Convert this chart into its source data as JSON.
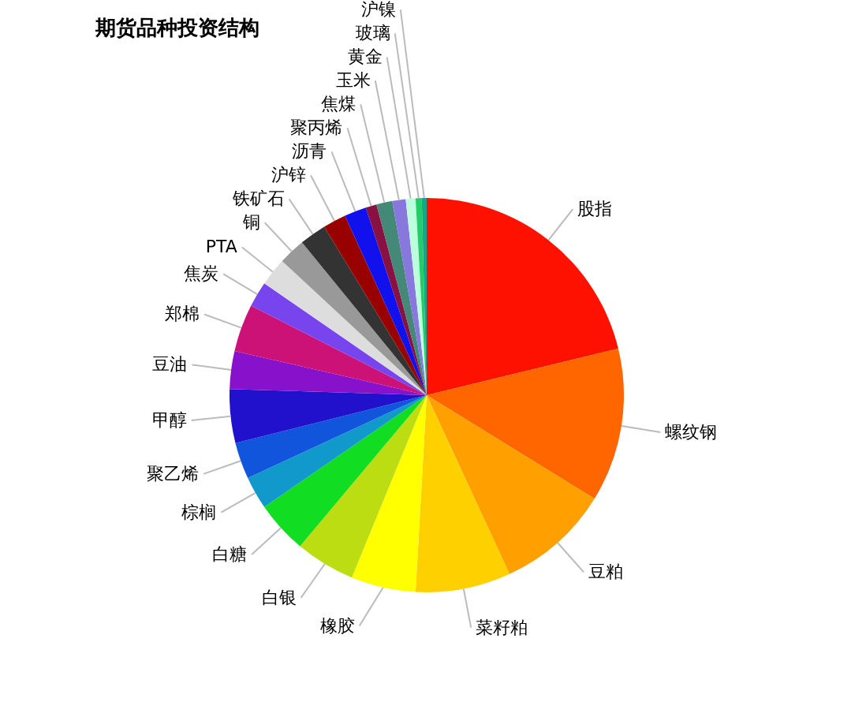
{
  "chart_data": {
    "type": "pie",
    "title": "期货品种投资结构",
    "categories": [
      "股指",
      "螺纹钢",
      "豆粕",
      "菜籽粕",
      "橡胶",
      "白银",
      "白糖",
      "棕榈",
      "聚乙烯",
      "甲醇",
      "豆油",
      "郑棉",
      "焦炭",
      "PTA",
      "铜",
      "铁矿石",
      "沪锌",
      "沥青",
      "聚丙烯",
      "焦煤",
      "玉米",
      "黄金",
      "玻璃",
      "沪镍"
    ],
    "values": [
      21.2,
      12.6,
      9.3,
      7.8,
      5.3,
      4.9,
      4.3,
      2.7,
      3.0,
      4.4,
      3.1,
      3.9,
      2.1,
      2.3,
      2.2,
      2.2,
      1.9,
      1.8,
      0.9,
      1.3,
      1.1,
      0.8,
      0.5,
      0.4
    ],
    "colors": [
      "#ff1100",
      "#ff6600",
      "#ffa000",
      "#ffd000",
      "#ffff00",
      "#bbdd11",
      "#11dd22",
      "#1199cc",
      "#1155dd",
      "#2211cc",
      "#8811cc",
      "#cc1177",
      "#7744ee",
      "#dddddd",
      "#999999",
      "#333333",
      "#990000",
      "#1111ee",
      "#881144",
      "#448877",
      "#8877dd",
      "#bbffdd",
      "#22cc66",
      "#11aa88"
    ]
  }
}
